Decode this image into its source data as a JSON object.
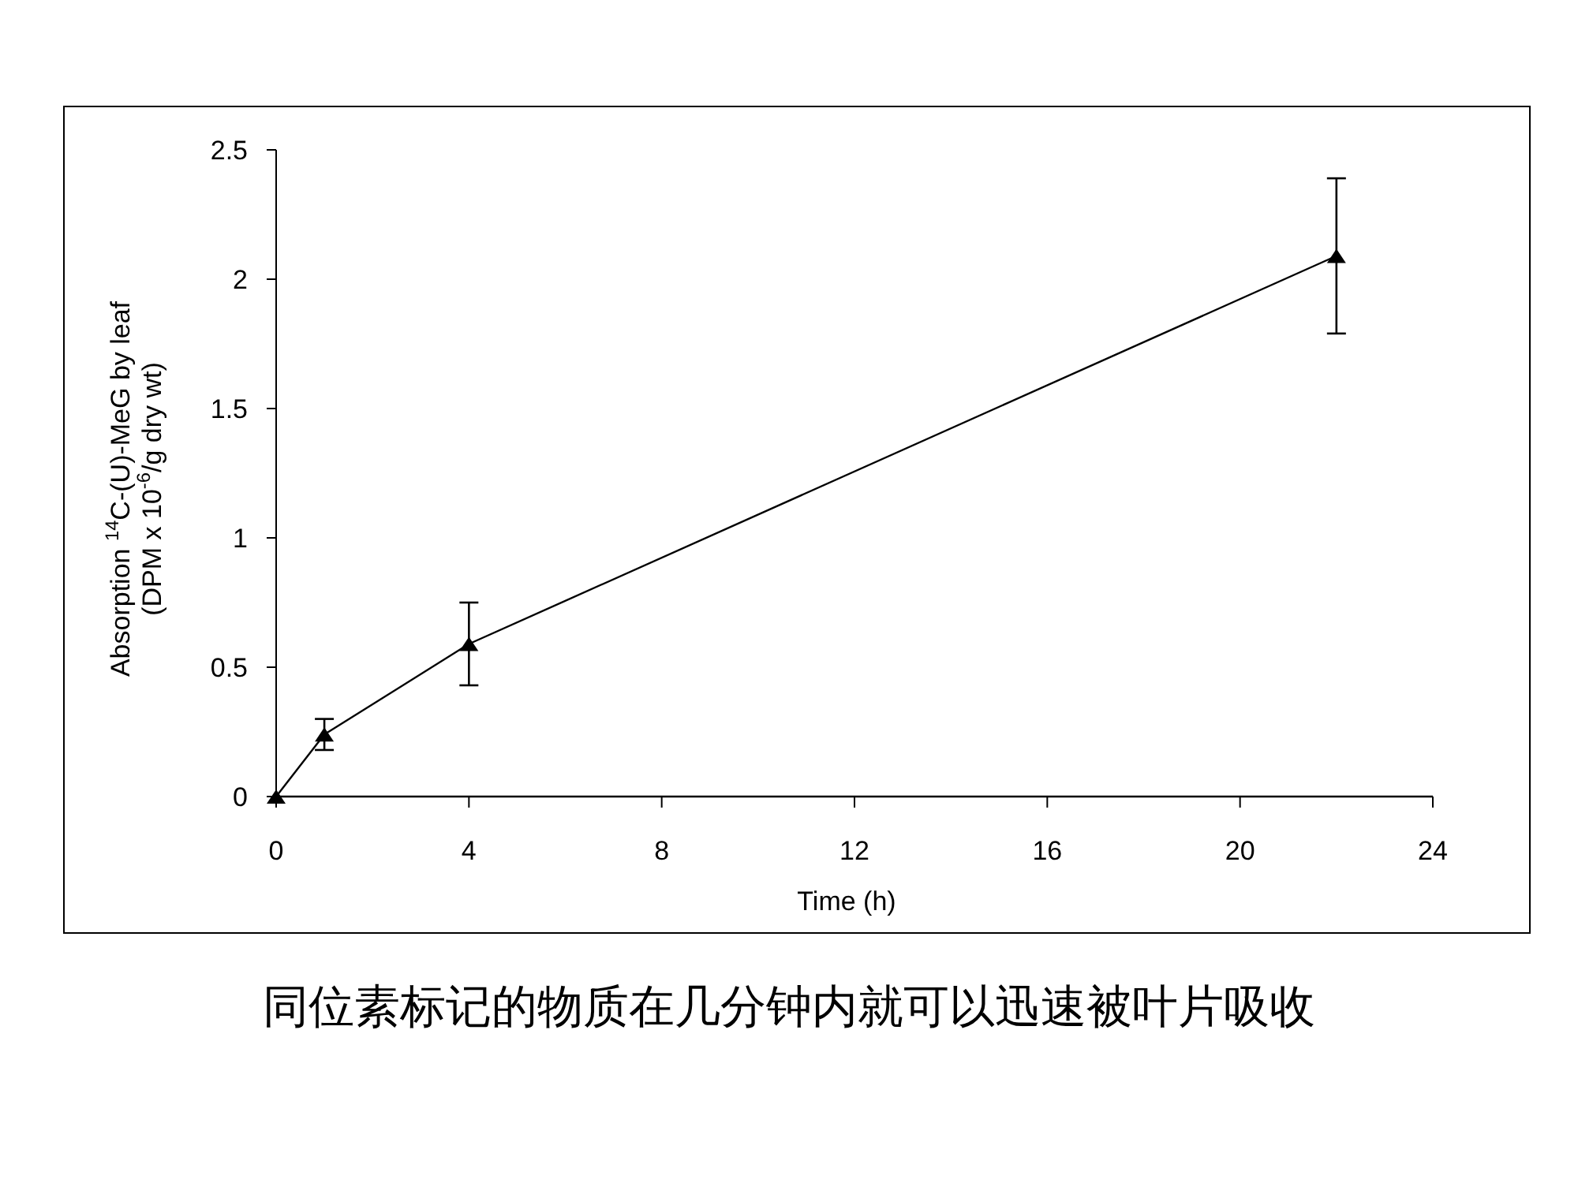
{
  "chart_data": {
    "type": "line",
    "xlabel": "Time (h)",
    "ylabel": "Absorption $^{14}$C-(U)-MeG by leaf\n(DPM x 10$^{-6}$/g dry wt)",
    "x": [
      0,
      1,
      4,
      22
    ],
    "series": [
      {
        "color": "#000000",
        "values": [
          0,
          0.24,
          0.59,
          2.09
        ],
        "errors": [
          null,
          0.06,
          0.16,
          0.3
        ]
      }
    ],
    "xlim": [
      0,
      24
    ],
    "xticks": [
      0,
      4,
      8,
      12,
      16,
      20,
      24
    ],
    "ylim": [
      0,
      2.5
    ],
    "yticks": [
      0,
      0.5,
      1,
      1.5,
      2,
      2.5
    ],
    "marker": "triangle",
    "grid": false,
    "annotations": [
      "同位素标记的物质在几分钟内就可以迅速被叶片吸收"
    ]
  }
}
